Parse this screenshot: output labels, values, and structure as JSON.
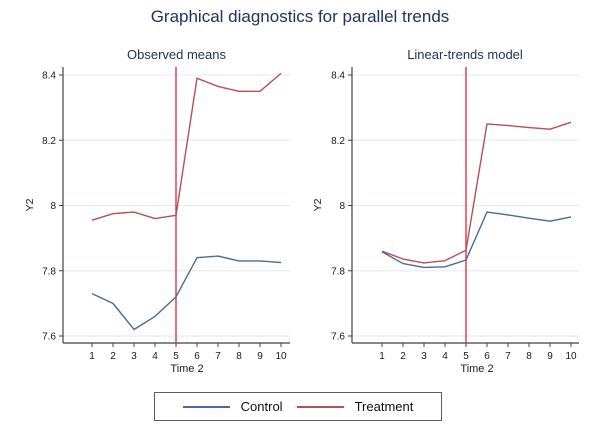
{
  "title": "Graphical diagnostics for parallel trends",
  "colors": {
    "title_text": "#1f3364",
    "control": "#486a9c",
    "treatment": "#bb4d56",
    "vline": "#e63246",
    "grid": "#e4eef2",
    "axis": "#424242",
    "tick_text": "#1a1a1a"
  },
  "legend": {
    "items": [
      {
        "label": "Control",
        "color": "#486a9c"
      },
      {
        "label": "Treatment",
        "color": "#bb4d56"
      }
    ]
  },
  "chart_data": [
    {
      "type": "line",
      "title": "Observed means",
      "xlabel": "Time 2",
      "ylabel": "Y2",
      "x": [
        1,
        2,
        3,
        4,
        5,
        6,
        7,
        8,
        9,
        10
      ],
      "yticks": [
        7.6,
        7.8,
        8,
        8.2,
        8.4
      ],
      "ytick_labels": [
        "7.6",
        "7.8",
        "8",
        "8.2",
        "8.4"
      ],
      "ylim": [
        7.58,
        8.42
      ],
      "xlim": [
        -0.4,
        10.45
      ],
      "vline_x": 5,
      "grid": true,
      "legend_position": "bottom",
      "series": [
        {
          "name": "Control",
          "values": [
            7.73,
            7.7,
            7.62,
            7.66,
            7.72,
            7.84,
            7.845,
            7.83,
            7.83,
            7.825
          ]
        },
        {
          "name": "Treatment",
          "values": [
            7.955,
            7.975,
            7.98,
            7.96,
            7.97,
            8.39,
            8.365,
            8.35,
            8.35,
            8.405
          ]
        }
      ]
    },
    {
      "type": "line",
      "title": "Linear-trends model",
      "xlabel": "Time 2",
      "ylabel": "Y2",
      "x": [
        1,
        2,
        3,
        4,
        5,
        6,
        7,
        8,
        9,
        10
      ],
      "yticks": [
        7.6,
        7.8,
        8,
        8.2,
        8.4
      ],
      "ytick_labels": [
        "7.6",
        "7.8",
        "8",
        "8.2",
        "8.4"
      ],
      "ylim": [
        7.58,
        8.42
      ],
      "xlim": [
        -0.4,
        10.45
      ],
      "vline_x": 5,
      "grid": true,
      "legend_position": "bottom",
      "series": [
        {
          "name": "Control",
          "values": [
            7.858,
            7.822,
            7.81,
            7.812,
            7.833,
            7.98,
            7.971,
            7.961,
            7.952,
            7.965
          ]
        },
        {
          "name": "Treatment",
          "values": [
            7.86,
            7.836,
            7.824,
            7.831,
            7.863,
            8.25,
            8.245,
            8.239,
            8.234,
            8.255
          ]
        }
      ]
    }
  ]
}
